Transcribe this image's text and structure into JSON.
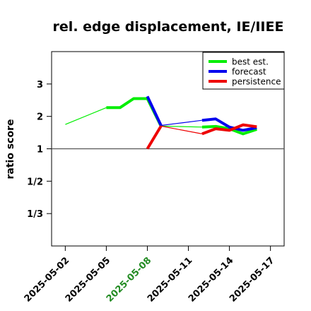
{
  "chart_data": {
    "type": "line",
    "title": "rel. edge displacement, IE/IIEE",
    "ylabel": "ratio score",
    "xlabel": "",
    "x_range": [
      "2025-05-01",
      "2025-05-18"
    ],
    "ylim": [
      0.25,
      4.0
    ],
    "y_scale": "reciprocal",
    "reference_line": 1,
    "x_ticks": [
      {
        "date": "2025-05-02",
        "label": "2025-05-02",
        "color": "#000000"
      },
      {
        "date": "2025-05-05",
        "label": "2025-05-05",
        "color": "#000000"
      },
      {
        "date": "2025-05-08",
        "label": "2025-05-08",
        "color": "#228B22"
      },
      {
        "date": "2025-05-11",
        "label": "2025-05-11",
        "color": "#000000"
      },
      {
        "date": "2025-05-14",
        "label": "2025-05-14",
        "color": "#000000"
      },
      {
        "date": "2025-05-17",
        "label": "2025-05-17",
        "color": "#000000"
      }
    ],
    "y_ticks": [
      {
        "value": 3,
        "label": "3"
      },
      {
        "value": 2,
        "label": "2"
      },
      {
        "value": 1,
        "label": "1"
      },
      {
        "value": 0.5,
        "label": "1/2"
      },
      {
        "value": 0.3333,
        "label": "1/3"
      }
    ],
    "legend_position": "top-right",
    "series": [
      {
        "name": "best est.",
        "color": "#00ee00",
        "segments": [
          {
            "width": "thin",
            "points": [
              [
                "2025-05-02",
                1.75
              ],
              [
                "2025-05-05",
                2.27
              ]
            ]
          },
          {
            "width": "thick",
            "points": [
              [
                "2025-05-05",
                2.27
              ],
              [
                "2025-05-06",
                2.27
              ],
              [
                "2025-05-07",
                2.55
              ],
              [
                "2025-05-08",
                2.55
              ],
              [
                "2025-05-09",
                1.7
              ]
            ]
          },
          {
            "width": "thin",
            "points": [
              [
                "2025-05-09",
                1.7
              ],
              [
                "2025-05-12",
                1.67
              ]
            ]
          },
          {
            "width": "thick",
            "points": [
              [
                "2025-05-12",
                1.67
              ],
              [
                "2025-05-13",
                1.69
              ],
              [
                "2025-05-14",
                1.62
              ],
              [
                "2025-05-15",
                1.46
              ],
              [
                "2025-05-16",
                1.6
              ]
            ]
          }
        ]
      },
      {
        "name": "forecast",
        "color": "#0000ee",
        "segments": [
          {
            "width": "thick",
            "points": [
              [
                "2025-05-08",
                2.62
              ],
              [
                "2025-05-09",
                1.72
              ]
            ]
          },
          {
            "width": "thin",
            "points": [
              [
                "2025-05-09",
                1.72
              ],
              [
                "2025-05-12",
                1.88
              ]
            ]
          },
          {
            "width": "thick",
            "points": [
              [
                "2025-05-12",
                1.88
              ],
              [
                "2025-05-13",
                1.92
              ],
              [
                "2025-05-14",
                1.67
              ],
              [
                "2025-05-15",
                1.57
              ],
              [
                "2025-05-16",
                1.65
              ]
            ]
          }
        ]
      },
      {
        "name": "persistence",
        "color": "#ee0000",
        "segments": [
          {
            "width": "thick",
            "points": [
              [
                "2025-05-08",
                1.0
              ],
              [
                "2025-05-09",
                1.7
              ]
            ]
          },
          {
            "width": "thin",
            "points": [
              [
                "2025-05-09",
                1.7
              ],
              [
                "2025-05-12",
                1.46
              ]
            ]
          },
          {
            "width": "thick",
            "points": [
              [
                "2025-05-12",
                1.46
              ],
              [
                "2025-05-13",
                1.62
              ],
              [
                "2025-05-14",
                1.57
              ],
              [
                "2025-05-15",
                1.74
              ],
              [
                "2025-05-16",
                1.68
              ]
            ]
          }
        ]
      }
    ]
  }
}
